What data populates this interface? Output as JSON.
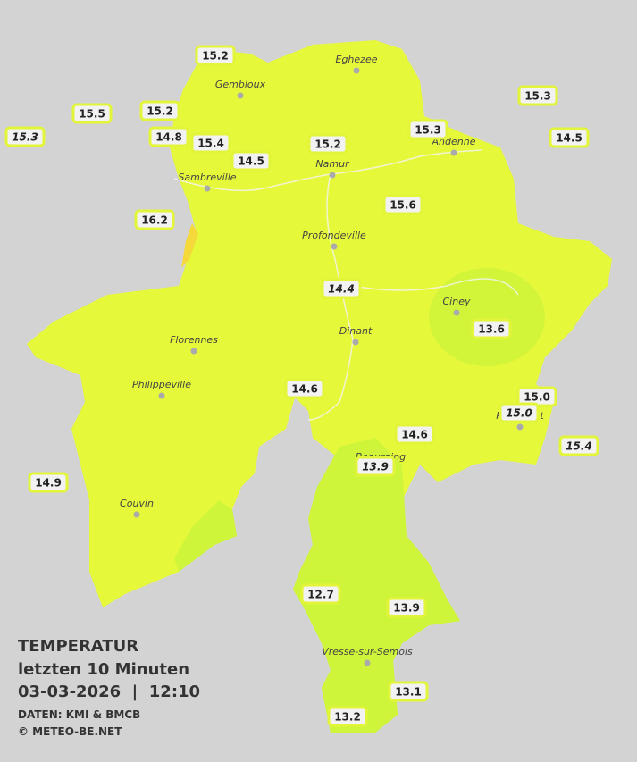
{
  "map": {
    "title": "TEMPERATUR",
    "subtitle": "letzten 10 Minuten",
    "timestamp": "03-03-2026  |  12:10",
    "source": "DATEN: KMI & BMCB",
    "copyright": "© METEO-BE.NET",
    "cities": [
      "Eghezee",
      "Gembloux",
      "Andenne",
      "Namur",
      "Sambreville",
      "Profondeville",
      "Ciney",
      "Dinant",
      "Florennes",
      "Philippeville",
      "Rochefort",
      "Beauraing",
      "Couvin",
      "Vresse-sur-Semois"
    ],
    "stations": [
      "15.2",
      "15.5",
      "15.3",
      "15.2",
      "14.8",
      "15.4",
      "14.5",
      "15.2",
      "15.3",
      "15.3",
      "14.5",
      "15.6",
      "16.2",
      "14.4",
      "13.6",
      "14.6",
      "15.0",
      "15.0",
      "15.4",
      "14.6",
      "13.9",
      "14.9",
      "12.7",
      "13.9",
      "13.1",
      "13.2"
    ]
  }
}
